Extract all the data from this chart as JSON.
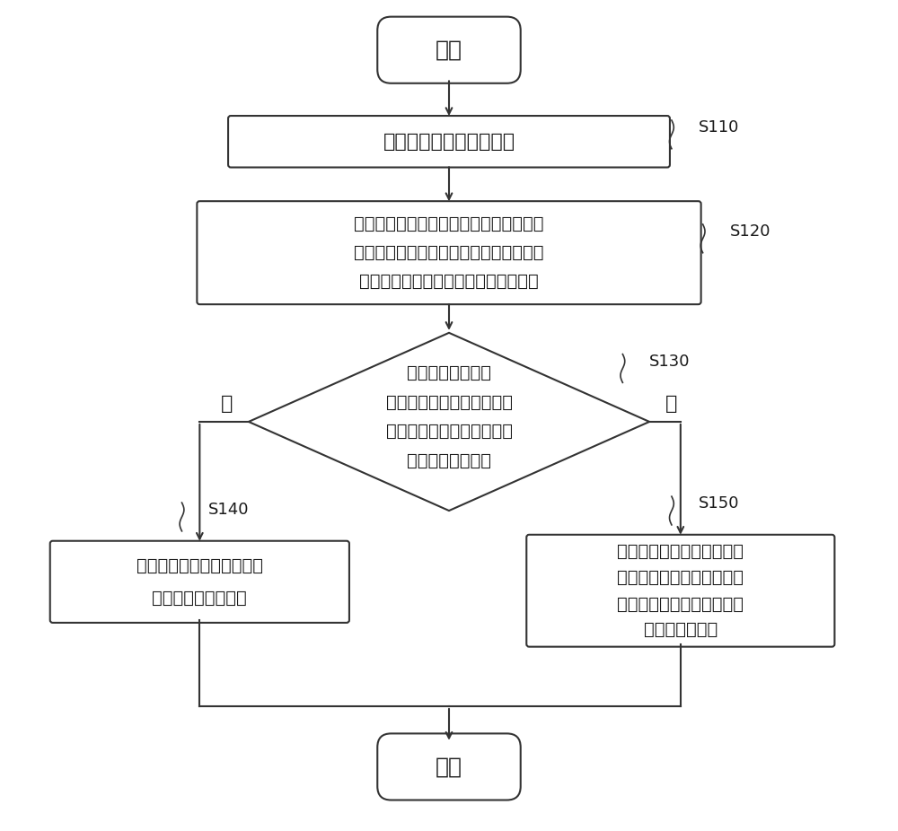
{
  "bg_color": "#ffffff",
  "line_color": "#333333",
  "box_fill": "#ffffff",
  "text_color": "#1a1a1a",
  "font_size": 16,
  "small_font_size": 14,
  "start_end_text": [
    "开始",
    "结束"
  ],
  "box1_text": "获取显示面板的光学数据",
  "box2_line1": "获取显示从显示面板的光学数据中确定第",
  "box2_line2": "一显示区对应的第一光学数据和第二显示",
  "box2_line3": "区对应的第二光学数据面板的光学数据",
  "diamond_line1": "计算第一光学数据",
  "diamond_line2": "和第二光学数据的光学数据",
  "diamond_line3": "差异，并判断光学数据差异",
  "diamond_line4": "是否在设定范围内",
  "box3_line1": "调整显示面板的第一显示区",
  "box3_line2": "域光学数据补偶参数",
  "box4_line1": "将调整后的第一显示区域光",
  "box4_line2": "学补偶参数写入显示面板中",
  "box4_line3": "和第一显示区域光学补偶功",
  "box4_line4": "能对应的寄存器",
  "label_S110": "S110",
  "label_S120": "S120",
  "label_S130": "S130",
  "label_S140": "S140",
  "label_S150": "S150",
  "yes_label": "是",
  "no_label": "否"
}
